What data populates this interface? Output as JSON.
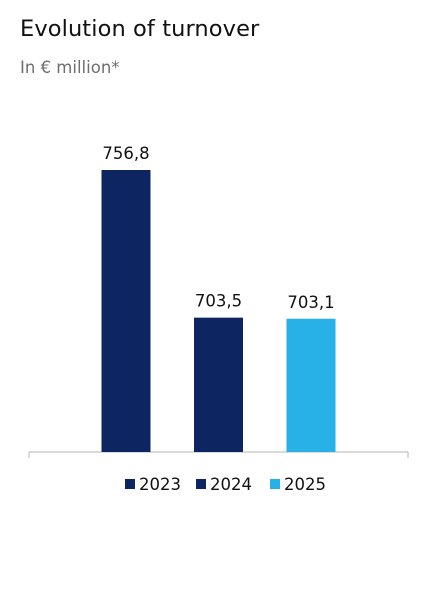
{
  "chart_data": {
    "type": "bar",
    "title": "Evolution of turnover",
    "subtitle": "In € million*",
    "categories": [
      "2023",
      "2024",
      "2025"
    ],
    "values": [
      756.8,
      703.5,
      703.1
    ],
    "value_labels": [
      "756,8",
      "703,5",
      "703,1"
    ],
    "legend": [
      "2023",
      "2024",
      "2025"
    ],
    "legend_position": "bottom",
    "colors": [
      "#0d2560",
      "#0d2560",
      "#27b1e6"
    ],
    "baseline_color": "#b5b5b5",
    "ylim": [
      655,
      760
    ],
    "grid": false
  }
}
